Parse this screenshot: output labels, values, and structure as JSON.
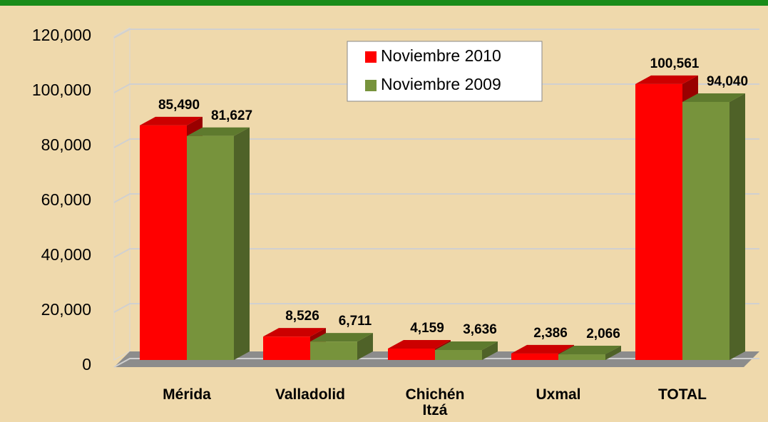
{
  "chart_data": {
    "type": "bar3d",
    "categories": [
      "Mérida",
      "Valladolid",
      "Chichén Itzá",
      "Uxmal",
      "TOTAL"
    ],
    "series": [
      {
        "name": "Noviembre 2010",
        "color": "#ff0000",
        "values": [
          85490,
          8526,
          4159,
          2386,
          100561
        ],
        "value_labels": [
          "85,490",
          "8,526",
          "4,159",
          "2,386",
          "100,561"
        ]
      },
      {
        "name": "Noviembre 2009",
        "color": "#77933c",
        "values": [
          81627,
          6711,
          3636,
          2066,
          94040
        ],
        "value_labels": [
          "81,627",
          "6,711",
          "3,636",
          "2,066",
          "94,040"
        ]
      }
    ],
    "ylim": [
      0,
      120000
    ],
    "yticks": [
      0,
      {
        "value": 20000,
        "label": "20,000"
      },
      {
        "value": 40000,
        "label": "40,000"
      },
      {
        "value": 60000,
        "label": "60,000"
      },
      {
        "value": 80000,
        "label": "80,000"
      },
      {
        "value": 100000,
        "label": "100,000"
      },
      {
        "value": 120000,
        "label": "120,000"
      }
    ],
    "grid": true,
    "legend": "top"
  }
}
